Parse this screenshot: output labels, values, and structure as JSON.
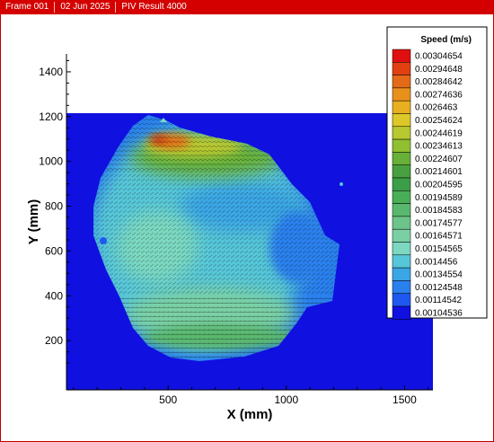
{
  "header": {
    "frame": "Frame 001",
    "date": "02 Jun 2025",
    "result": "PIV Result  4000"
  },
  "chart_data": {
    "type": "heatmap",
    "xlabel": "X (mm)",
    "ylabel": "Y (mm)",
    "xlim": [
      70,
      1620
    ],
    "ylim": [
      -20,
      1480
    ],
    "x_ticks": [
      500,
      1000,
      1500
    ],
    "y_ticks": [
      200,
      400,
      600,
      800,
      1000,
      1200,
      1400
    ],
    "field_extent": {
      "x": [
        70,
        1620
      ],
      "y": [
        100,
        1215
      ]
    },
    "vector_field": true,
    "legend": {
      "title": "Speed (m/s)",
      "placement": "top-right",
      "levels": [
        0.00304654,
        0.00294648,
        0.00284642,
        0.00274636,
        0.0026463,
        0.00254624,
        0.00244619,
        0.00234613,
        0.00224607,
        0.00214601,
        0.00204595,
        0.00194589,
        0.00184583,
        0.00174577,
        0.00164571,
        0.00154565,
        0.0014456,
        0.00134554,
        0.00124548,
        0.00114542,
        0.00104536
      ],
      "labels": [
        "0.00304654",
        "0.00294648",
        "0.00284642",
        "0.00274636",
        "0.0026463",
        "0.00254624",
        "0.00244619",
        "0.00234613",
        "0.00224607",
        "0.00214601",
        "0.00204595",
        "0.00194589",
        "0.00184583",
        "0.00174577",
        "0.00164571",
        "0.00154565",
        "0.0014456",
        "0.00134554",
        "0.00124548",
        "0.00114542",
        "0.00104536"
      ],
      "colors": [
        "#e01010",
        "#e24010",
        "#e46a18",
        "#e8901c",
        "#e8b020",
        "#dcc828",
        "#b8c830",
        "#90bf30",
        "#68b038",
        "#48a040",
        "#3c9e48",
        "#48ae58",
        "#5ab86e",
        "#6cc488",
        "#7ad0a4",
        "#7cd8c0",
        "#56c6d8",
        "#3aa6e4",
        "#2a80ec",
        "#1e58f0",
        "#1010e0"
      ]
    }
  }
}
